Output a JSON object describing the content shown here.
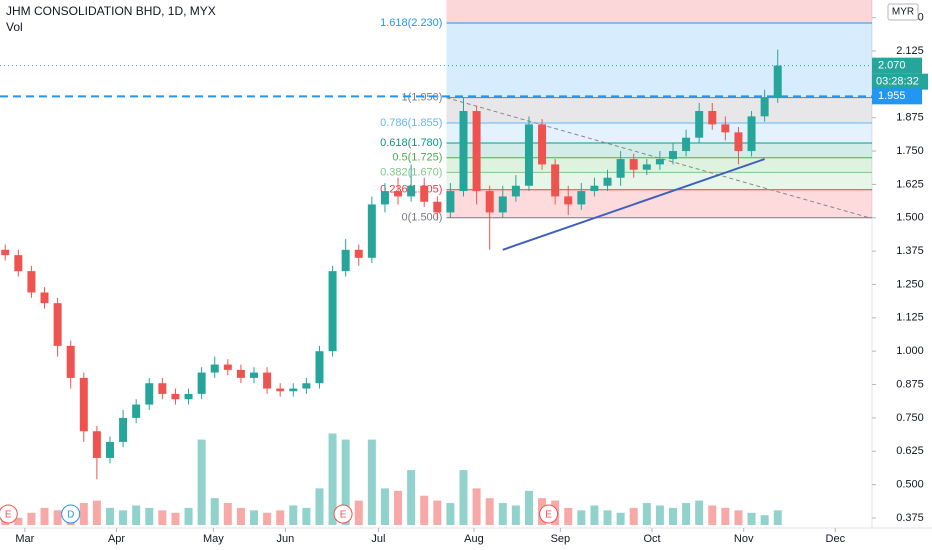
{
  "chart_data": {
    "type": "candlestick",
    "title": "JHM CONSOLIDATION BHD, 1D, MYX",
    "subtitle": "Vol",
    "currency": "MYR",
    "up_color": "#26a69a",
    "down_color": "#ef5350",
    "open": [
      1.38,
      1.36,
      1.3,
      1.22,
      1.18,
      1.02,
      0.9,
      0.7,
      0.6,
      0.66,
      0.75,
      0.8,
      0.88,
      0.84,
      0.82,
      0.84,
      0.92,
      0.95,
      0.93,
      0.9,
      0.92,
      0.86,
      0.85,
      0.86,
      0.88,
      1.0,
      1.3,
      1.38,
      1.35,
      1.55,
      1.6,
      1.58,
      1.62,
      1.56,
      1.52,
      1.6,
      1.9,
      1.6,
      1.52,
      1.58,
      1.62,
      1.85,
      1.7,
      1.58,
      1.55,
      1.6,
      1.62,
      1.65,
      1.72,
      1.68,
      1.7,
      1.72,
      1.75,
      1.8,
      1.9,
      1.85,
      1.82,
      1.75,
      1.88,
      1.95
    ],
    "high": [
      1.4,
      1.38,
      1.32,
      1.24,
      1.2,
      1.04,
      0.92,
      0.72,
      0.68,
      0.78,
      0.82,
      0.9,
      0.9,
      0.86,
      0.86,
      0.94,
      0.98,
      0.97,
      0.95,
      0.94,
      0.94,
      0.88,
      0.88,
      0.9,
      1.02,
      1.32,
      1.42,
      1.4,
      1.58,
      1.63,
      1.65,
      1.7,
      1.65,
      1.58,
      1.63,
      1.95,
      1.92,
      1.62,
      1.62,
      1.66,
      1.88,
      1.87,
      1.72,
      1.62,
      1.63,
      1.65,
      1.68,
      1.75,
      1.74,
      1.72,
      1.75,
      1.78,
      1.83,
      1.93,
      1.93,
      1.88,
      1.84,
      1.9,
      1.98,
      2.13
    ],
    "low": [
      1.34,
      1.28,
      1.2,
      1.16,
      0.98,
      0.86,
      0.66,
      0.52,
      0.58,
      0.64,
      0.73,
      0.78,
      0.82,
      0.8,
      0.8,
      0.82,
      0.9,
      0.91,
      0.88,
      0.88,
      0.84,
      0.83,
      0.83,
      0.84,
      0.86,
      0.98,
      1.28,
      1.32,
      1.33,
      1.52,
      1.55,
      1.56,
      1.54,
      1.49,
      1.5,
      1.58,
      1.55,
      1.38,
      1.5,
      1.56,
      1.6,
      1.68,
      1.55,
      1.51,
      1.53,
      1.58,
      1.6,
      1.62,
      1.65,
      1.66,
      1.68,
      1.7,
      1.73,
      1.78,
      1.83,
      1.79,
      1.7,
      1.73,
      1.86,
      1.93
    ],
    "close": [
      1.36,
      1.3,
      1.22,
      1.18,
      1.02,
      0.9,
      0.7,
      0.6,
      0.66,
      0.75,
      0.8,
      0.88,
      0.84,
      0.82,
      0.84,
      0.92,
      0.95,
      0.93,
      0.9,
      0.92,
      0.86,
      0.85,
      0.86,
      0.88,
      1.0,
      1.3,
      1.38,
      1.35,
      1.55,
      1.6,
      1.58,
      1.62,
      1.56,
      1.52,
      1.6,
      1.9,
      1.6,
      1.52,
      1.58,
      1.62,
      1.85,
      1.7,
      1.58,
      1.55,
      1.6,
      1.62,
      1.65,
      1.72,
      1.68,
      1.7,
      1.72,
      1.75,
      1.8,
      1.9,
      1.85,
      1.82,
      1.75,
      1.88,
      1.95,
      2.07
    ],
    "volume": [
      8,
      6,
      10,
      14,
      12,
      10,
      18,
      20,
      14,
      12,
      16,
      14,
      12,
      10,
      14,
      70,
      22,
      18,
      14,
      12,
      10,
      12,
      16,
      14,
      30,
      75,
      70,
      20,
      70,
      30,
      28,
      45,
      24,
      20,
      18,
      45,
      30,
      22,
      18,
      16,
      28,
      22,
      20,
      14,
      12,
      16,
      12,
      10,
      14,
      18,
      16,
      14,
      18,
      20,
      16,
      14,
      12,
      10,
      8,
      12
    ],
    "xlim": [
      -0.4,
      66.2
    ],
    "xticks": [
      {
        "value": 1.5,
        "label": "Mar"
      },
      {
        "value": 8.5,
        "label": "Apr"
      },
      {
        "value": 15.9,
        "label": "May"
      },
      {
        "value": 21.4,
        "label": "Jun"
      },
      {
        "value": 28.5,
        "label": "Jul"
      },
      {
        "value": 35.8,
        "label": "Aug"
      },
      {
        "value": 42.4,
        "label": "Sep"
      },
      {
        "value": 49.4,
        "label": "Oct"
      },
      {
        "value": 56.4,
        "label": "Nov"
      },
      {
        "value": 63.4,
        "label": "Dec"
      }
    ],
    "ylim": [
      0.3375,
      2.316
    ],
    "yticks": [
      0.375,
      {
        "value": 0.5,
        "label": "0.500"
      },
      0.625,
      {
        "value": 0.75,
        "label": "0.750"
      },
      0.875,
      {
        "value": 1.0,
        "label": "1.000"
      },
      1.125,
      {
        "value": 1.25,
        "label": "1.250"
      },
      1.375,
      {
        "value": 1.5,
        "label": "1.500"
      },
      1.625,
      {
        "value": 1.75,
        "label": "1.750"
      },
      1.875,
      2.125,
      {
        "value": 2.25,
        "label": "2.250"
      }
    ],
    "fib_start": 33.7,
    "fib_top_color": "#f23645",
    "fib_levels": [
      {
        "value": 1.5,
        "label": "0(1.500)",
        "color": "#787b86"
      },
      {
        "value": 1.605,
        "label": "0.236(1.605)",
        "color": "#f23645"
      },
      {
        "value": 1.67,
        "label": "0.382(1.670)",
        "color": "#81c784"
      },
      {
        "value": 1.725,
        "label": "0.5(1.725)",
        "color": "#4caf50"
      },
      {
        "value": 1.78,
        "label": "0.618(1.780)",
        "color": "#089981"
      },
      {
        "value": 1.855,
        "label": "0.786(1.855)",
        "color": "#64b5f6"
      },
      {
        "value": 1.95,
        "label": "1(1.950)",
        "color": "#787b86"
      },
      {
        "value": 2.23,
        "label": "1.618(2.230)",
        "color": "#2196f3"
      }
    ],
    "last_price": {
      "value": 2.07,
      "label": "2.070",
      "color": "#26a69a"
    },
    "countdown": "03:28:32",
    "alert_line": {
      "value": 1.955,
      "label": "1.955",
      "color": "#2196f3"
    },
    "trendline": {
      "x": [
        38,
        58
      ],
      "y": [
        1.38,
        1.72
      ],
      "color": "#3f5fbf"
    },
    "dashed_line": {
      "x": [
        33.7,
        66
      ],
      "y": [
        1.95,
        1.5
      ],
      "color": "#888888"
    },
    "events": [
      {
        "x": 0.23,
        "label": "E"
      },
      {
        "x": 5.0,
        "label": "D"
      },
      {
        "x": 25.8,
        "label": "E"
      },
      {
        "x": 41.5,
        "label": "E"
      }
    ]
  }
}
